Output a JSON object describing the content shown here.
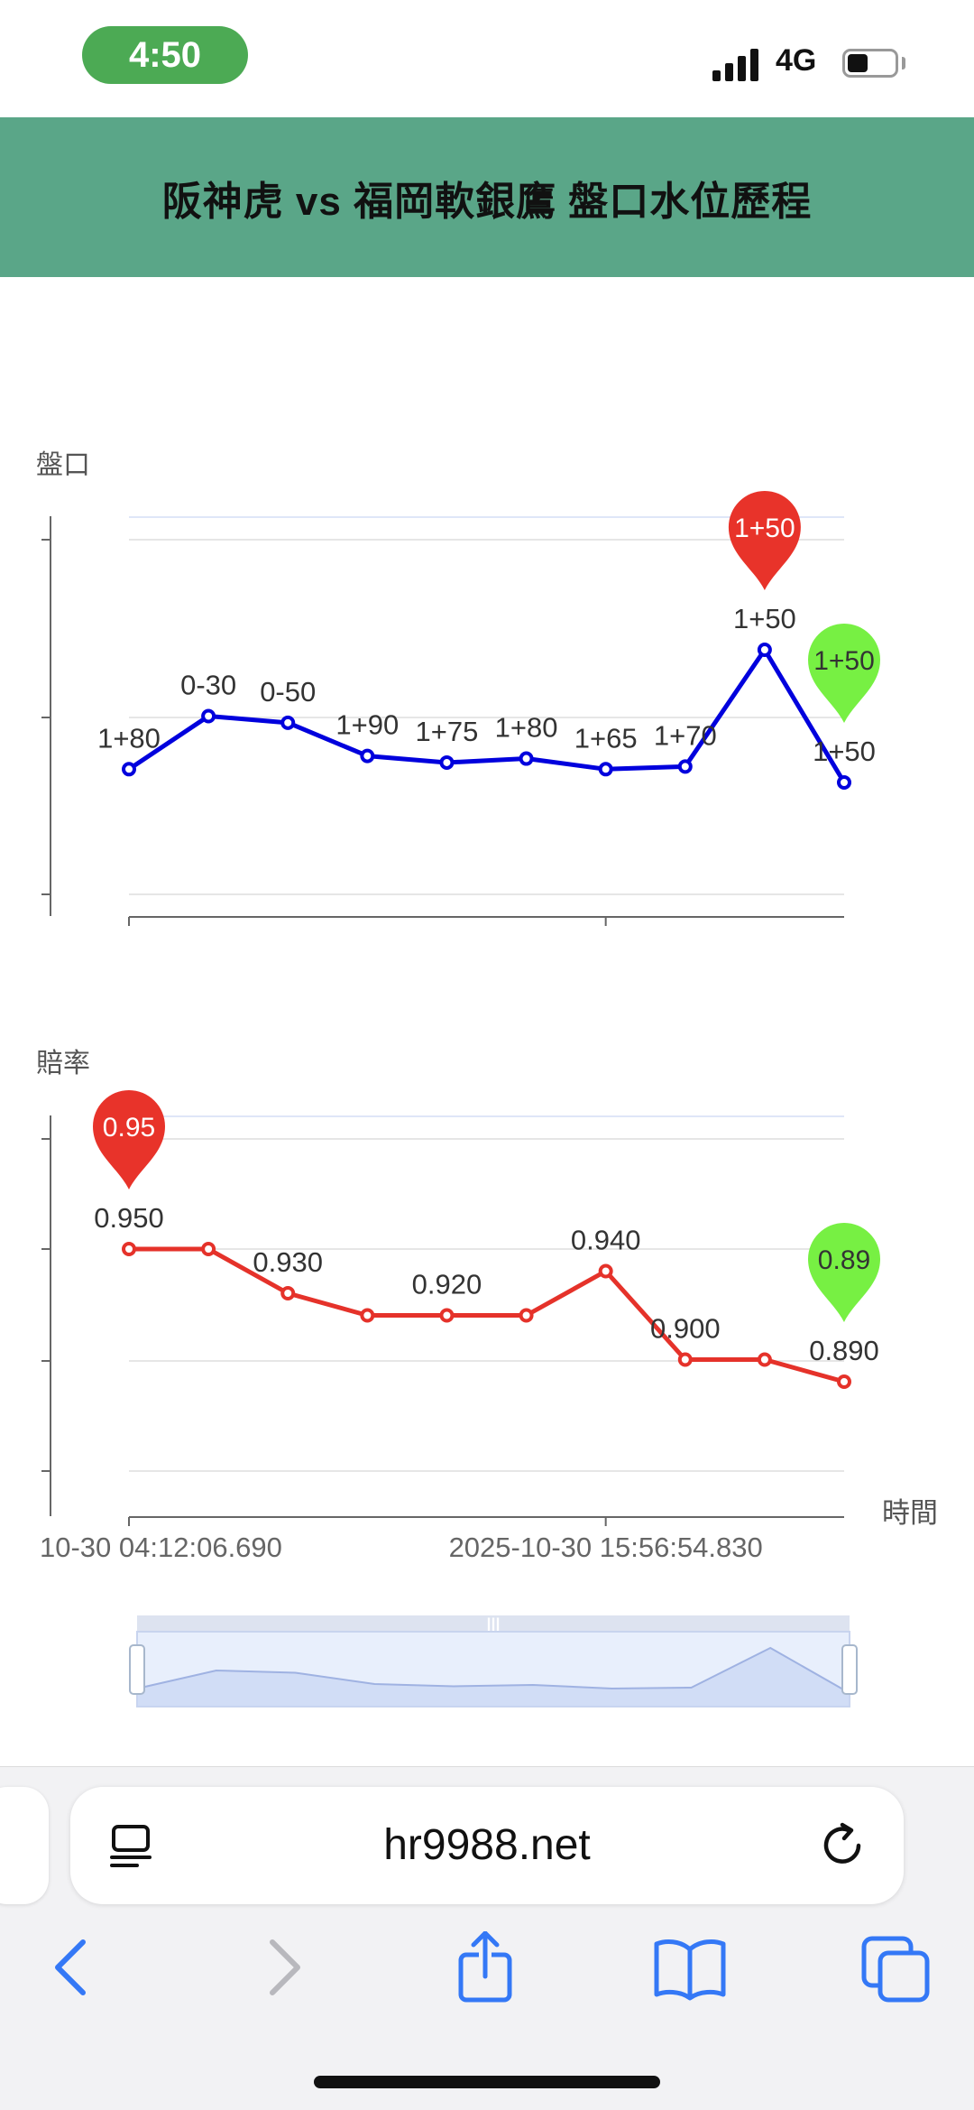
{
  "status_bar": {
    "time": "4:50",
    "network": "4G",
    "battery_level": 0.4
  },
  "header": {
    "title": "阪神虎 vs 福岡軟銀鷹 盤口水位歷程"
  },
  "chart_data": [
    {
      "type": "line",
      "ylabel": "盤口",
      "series": [
        {
          "color": "#0000dd",
          "values": [
            -0.3,
            0.1,
            0.05,
            -0.2,
            -0.25,
            -0.22,
            -0.3,
            -0.28,
            0.6,
            -0.4
          ],
          "labels": [
            "1+80",
            "0-30",
            "0-50",
            "1+90",
            "1+75",
            "1+80",
            "1+65",
            "1+70",
            "1+50",
            "1+50"
          ]
        }
      ],
      "markers": [
        {
          "type": "max",
          "label": "1+50",
          "index": 8,
          "color": "#e8332a"
        },
        {
          "type": "min",
          "label": "1+50",
          "index": 9,
          "color": "#77f043"
        }
      ],
      "grid": true
    },
    {
      "type": "line",
      "ylabel": "賠率",
      "xlabel": "時間",
      "x_tick_labels": [
        "10-30 04:12:06.690",
        "2025-10-30 15:56:54.830"
      ],
      "series": [
        {
          "color": "#e5322a",
          "values": [
            0.95,
            0.95,
            0.93,
            0.92,
            0.92,
            0.92,
            0.94,
            0.9,
            0.9,
            0.89
          ],
          "labels": [
            "0.950",
            "",
            "0.930",
            "",
            "0.920",
            "",
            "0.940",
            "0.900",
            "",
            "0.890"
          ]
        }
      ],
      "markers": [
        {
          "type": "max",
          "label": "0.95",
          "index": 0,
          "color": "#e8332a"
        },
        {
          "type": "min",
          "label": "0.89",
          "index": 9,
          "color": "#77f043"
        }
      ],
      "grid": true
    }
  ],
  "data_zoom": {
    "handle_grip": "|||",
    "range_start": 0,
    "range_end": 1
  },
  "browser": {
    "url": "hr9988.net",
    "icons": [
      "reader-icon",
      "reload-icon",
      "back-icon",
      "forward-icon",
      "share-icon",
      "bookmarks-icon",
      "tabs-icon"
    ]
  }
}
